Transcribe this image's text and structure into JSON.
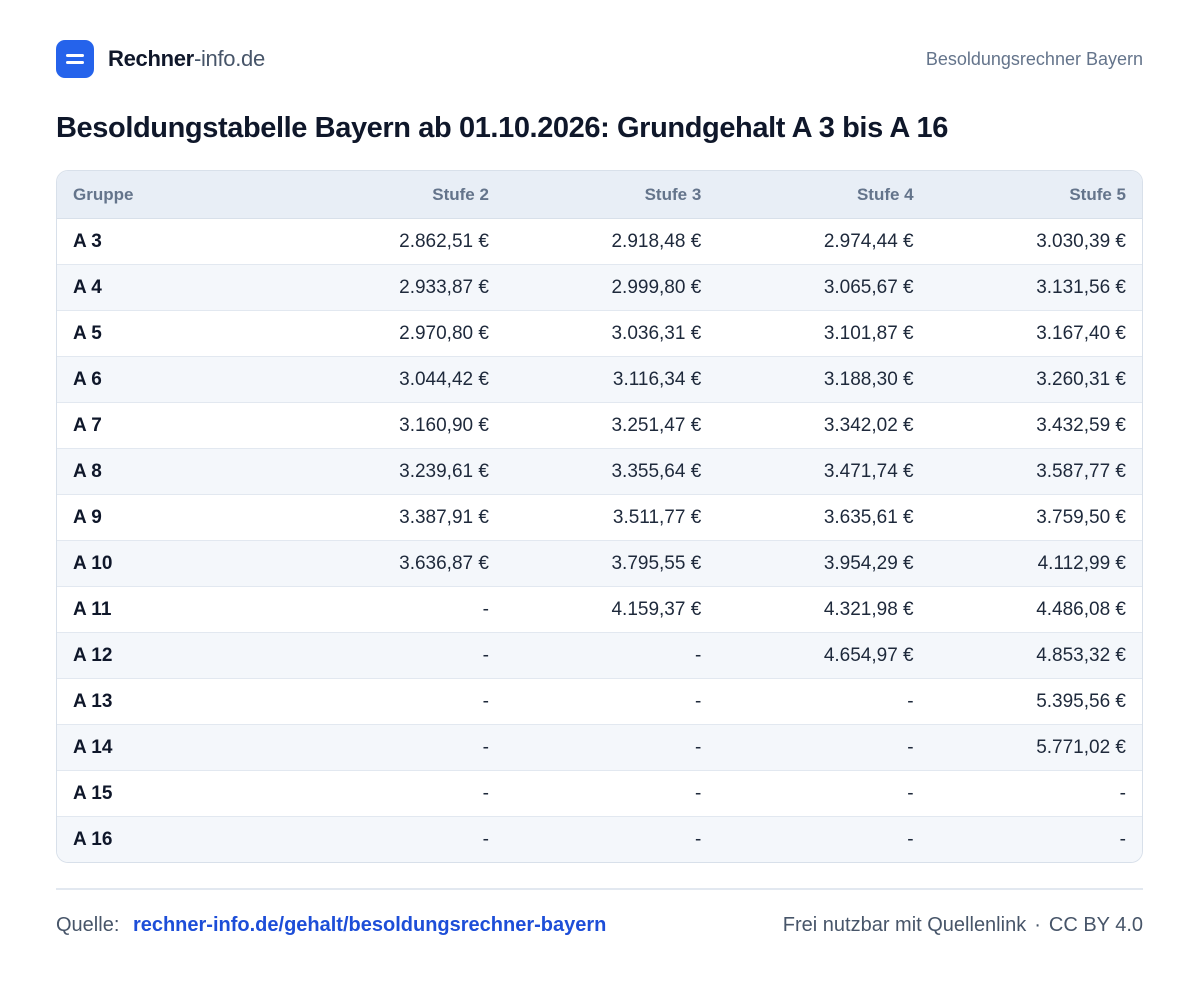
{
  "header": {
    "brand_strong": "Rechner",
    "brand_light": "-info.de",
    "right_text": "Besoldungsrechner Bayern",
    "logo_icon": "equals-icon",
    "accent_color": "#2563eb"
  },
  "title": "Besoldungstabelle Bayern ab 01.10.2026: Grundgehalt A 3 bis A 16",
  "table": {
    "columns": [
      "Gruppe",
      "Stufe 2",
      "Stufe 3",
      "Stufe 4",
      "Stufe 5"
    ],
    "rows": [
      [
        "A 3",
        "2.862,51 €",
        "2.918,48 €",
        "2.974,44 €",
        "3.030,39 €"
      ],
      [
        "A 4",
        "2.933,87 €",
        "2.999,80 €",
        "3.065,67 €",
        "3.131,56 €"
      ],
      [
        "A 5",
        "2.970,80 €",
        "3.036,31 €",
        "3.101,87 €",
        "3.167,40 €"
      ],
      [
        "A 6",
        "3.044,42 €",
        "3.116,34 €",
        "3.188,30 €",
        "3.260,31 €"
      ],
      [
        "A 7",
        "3.160,90 €",
        "3.251,47 €",
        "3.342,02 €",
        "3.432,59 €"
      ],
      [
        "A 8",
        "3.239,61 €",
        "3.355,64 €",
        "3.471,74 €",
        "3.587,77 €"
      ],
      [
        "A 9",
        "3.387,91 €",
        "3.511,77 €",
        "3.635,61 €",
        "3.759,50 €"
      ],
      [
        "A 10",
        "3.636,87 €",
        "3.795,55 €",
        "3.954,29 €",
        "4.112,99 €"
      ],
      [
        "A 11",
        "-",
        "4.159,37 €",
        "4.321,98 €",
        "4.486,08 €"
      ],
      [
        "A 12",
        "-",
        "-",
        "4.654,97 €",
        "4.853,32 €"
      ],
      [
        "A 13",
        "-",
        "-",
        "-",
        "5.395,56 €"
      ],
      [
        "A 14",
        "-",
        "-",
        "-",
        "5.771,02 €"
      ],
      [
        "A 15",
        "-",
        "-",
        "-",
        "-"
      ],
      [
        "A 16",
        "-",
        "-",
        "-",
        "-"
      ]
    ]
  },
  "footer": {
    "source_label": "Quelle:",
    "source_link": "rechner-info.de/gehalt/besoldungsrechner-bayern",
    "license_text": "Frei nutzbar mit Quellenlink",
    "separator": "·",
    "license_name": "CC BY 4.0",
    "link_color": "#1d4ed8"
  }
}
